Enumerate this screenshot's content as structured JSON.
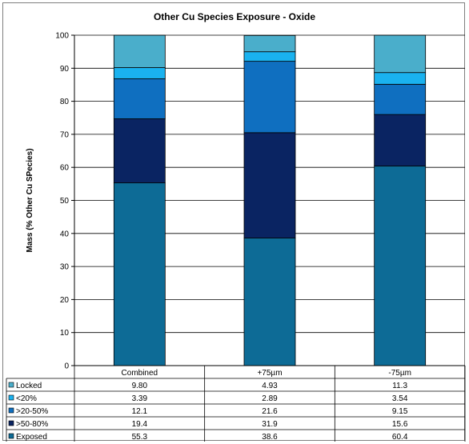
{
  "chart_data": {
    "type": "bar",
    "stacked": true,
    "title": "Other Cu Species Exposure - Oxide",
    "ylabel": "Mass (% Other Cu SPecies)",
    "xlabel": "",
    "ylim": [
      0,
      100
    ],
    "yticks": [
      0,
      10,
      20,
      30,
      40,
      50,
      60,
      70,
      80,
      90,
      100
    ],
    "grid": true,
    "legend": "data-table-left",
    "categories": [
      "Combined",
      "+75µm",
      "-75µm"
    ],
    "series": [
      {
        "name": "Exposed",
        "color": "#0d6b96",
        "values": [
          55.3,
          38.6,
          60.4
        ],
        "labels": [
          "55.3",
          "38.6",
          "60.4"
        ]
      },
      {
        "name": ">50-80%",
        "color": "#0a2462",
        "values": [
          19.4,
          31.9,
          15.6
        ],
        "labels": [
          "19.4",
          "31.9",
          "15.6"
        ]
      },
      {
        "name": ">20-50%",
        "color": "#0f6fc0",
        "values": [
          12.1,
          21.6,
          9.15
        ],
        "labels": [
          "12.1",
          "21.6",
          "9.15"
        ]
      },
      {
        "name": "<20%",
        "color": "#1ab2ef",
        "values": [
          3.39,
          2.89,
          3.54
        ],
        "labels": [
          "3.39",
          "2.89",
          "3.54"
        ]
      },
      {
        "name": "Locked",
        "color": "#4aaecb",
        "values": [
          9.8,
          4.93,
          11.3
        ],
        "labels": [
          "9.80",
          "4.93",
          "11.3"
        ]
      }
    ],
    "table_row_order": [
      "Locked",
      "<20%",
      ">20-50%",
      ">50-80%",
      "Exposed"
    ]
  }
}
